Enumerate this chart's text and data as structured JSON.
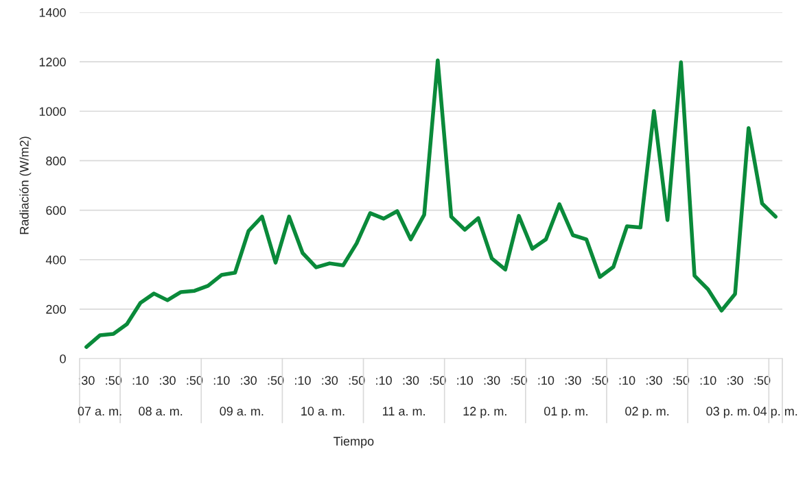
{
  "chart_data": {
    "type": "line",
    "xlabel": "Tiempo",
    "ylabel": "Radiación (W/m2)",
    "categories": [
      ":30",
      null,
      ":50",
      null,
      ":10",
      null,
      ":30",
      null,
      ":50",
      null,
      ":10",
      null,
      ":30",
      null,
      ":50",
      null,
      ":10",
      null,
      ":30",
      null,
      ":50",
      null,
      ":10",
      null,
      ":30",
      null,
      ":50",
      null,
      ":10",
      null,
      ":30",
      null,
      ":50",
      null,
      ":10",
      null,
      ":30",
      null,
      ":50",
      null,
      ":10",
      null,
      ":30",
      null,
      ":50",
      null,
      ":10",
      null,
      ":30",
      null,
      ":50",
      null
    ],
    "annotations": [
      "07 a. m.",
      "08 a. m.",
      "09 a. m.",
      "10 a. m.",
      "11 a. m.",
      "12 p. m.",
      "01 p. m.",
      "02 p. m.",
      "03 p. m.",
      "04 p. m."
    ],
    "series": [
      {
        "color": "#0a8a3a",
        "values": [
          47,
          94,
          100,
          139,
          225,
          263,
          236,
          269,
          274,
          294,
          338,
          347,
          516,
          574,
          388,
          574,
          427,
          369,
          385,
          377,
          466,
          588,
          566,
          596,
          482,
          582,
          1206,
          574,
          521,
          568,
          405,
          360,
          577,
          444,
          482,
          624,
          499,
          482,
          330,
          371,
          535,
          530,
          1001,
          560,
          1198,
          335,
          280,
          194,
          261,
          932,
          627,
          574
        ]
      }
    ],
    "ylim": [
      0,
      1400
    ],
    "yticks": [
      0,
      200,
      400,
      600,
      800,
      1000,
      1200,
      1400
    ],
    "grid": "y",
    "marker": "none",
    "line_style": "solid"
  }
}
